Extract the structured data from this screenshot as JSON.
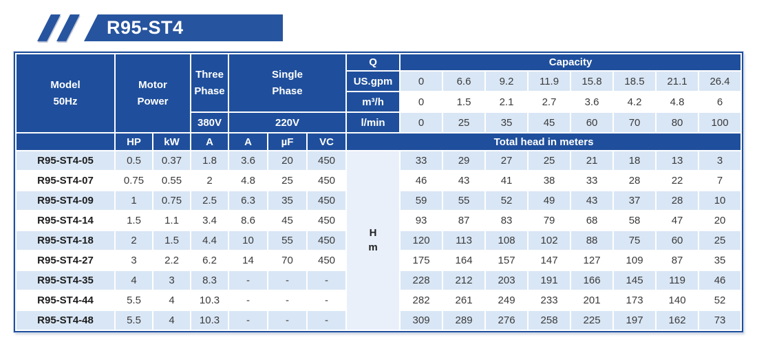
{
  "banner": {
    "title": "R95-ST4"
  },
  "colors": {
    "header_blue": "#1f4f9c",
    "banner_blue": "#27549f",
    "light_row": "#d9e6f5",
    "h_cell": "#e9f0fa"
  },
  "table": {
    "header": {
      "model_line1": "Model",
      "model_line2": "50Hz",
      "motor_line1": "Motor",
      "motor_line2": "Power",
      "three_line1": "Three",
      "three_line2": "Phase",
      "three_voltage": "380V",
      "single_line1": "Single",
      "single_line2": "Phase",
      "single_voltage": "220V",
      "q": "Q",
      "capacity": "Capacity",
      "unit_rows": [
        {
          "label": "US.gpm",
          "values": [
            "0",
            "6.6",
            "9.2",
            "11.9",
            "15.8",
            "18.5",
            "21.1",
            "26.4"
          ]
        },
        {
          "label": "m³/h",
          "values": [
            "0",
            "1.5",
            "2.1",
            "2.7",
            "3.6",
            "4.2",
            "4.8",
            "6"
          ]
        },
        {
          "label": "l/min",
          "values": [
            "0",
            "25",
            "35",
            "45",
            "60",
            "70",
            "80",
            "100"
          ]
        }
      ],
      "sub_headers": [
        "HP",
        "kW",
        "A",
        "A",
        "µF",
        "VC"
      ],
      "total_head": "Total head in meters",
      "h_line1": "H",
      "h_line2": "m"
    },
    "rows": [
      {
        "model": "R95-ST4-05",
        "hp": "0.5",
        "kw": "0.37",
        "a380": "1.8",
        "a220": "3.6",
        "uf": "20",
        "vc": "450",
        "head": [
          "33",
          "29",
          "27",
          "25",
          "21",
          "18",
          "13",
          "3"
        ]
      },
      {
        "model": "R95-ST4-07",
        "hp": "0.75",
        "kw": "0.55",
        "a380": "2",
        "a220": "4.8",
        "uf": "25",
        "vc": "450",
        "head": [
          "46",
          "43",
          "41",
          "38",
          "33",
          "28",
          "22",
          "7"
        ]
      },
      {
        "model": "R95-ST4-09",
        "hp": "1",
        "kw": "0.75",
        "a380": "2.5",
        "a220": "6.3",
        "uf": "35",
        "vc": "450",
        "head": [
          "59",
          "55",
          "52",
          "49",
          "43",
          "37",
          "28",
          "10"
        ]
      },
      {
        "model": "R95-ST4-14",
        "hp": "1.5",
        "kw": "1.1",
        "a380": "3.4",
        "a220": "8.6",
        "uf": "45",
        "vc": "450",
        "head": [
          "93",
          "87",
          "83",
          "79",
          "68",
          "58",
          "47",
          "20"
        ]
      },
      {
        "model": "R95-ST4-18",
        "hp": "2",
        "kw": "1.5",
        "a380": "4.4",
        "a220": "10",
        "uf": "55",
        "vc": "450",
        "head": [
          "120",
          "113",
          "108",
          "102",
          "88",
          "75",
          "60",
          "25"
        ]
      },
      {
        "model": "R95-ST4-27",
        "hp": "3",
        "kw": "2.2",
        "a380": "6.2",
        "a220": "14",
        "uf": "70",
        "vc": "450",
        "head": [
          "175",
          "164",
          "157",
          "147",
          "127",
          "109",
          "87",
          "35"
        ]
      },
      {
        "model": "R95-ST4-35",
        "hp": "4",
        "kw": "3",
        "a380": "8.3",
        "a220": "-",
        "uf": "-",
        "vc": "-",
        "head": [
          "228",
          "212",
          "203",
          "191",
          "166",
          "145",
          "119",
          "46"
        ]
      },
      {
        "model": "R95-ST4-44",
        "hp": "5.5",
        "kw": "4",
        "a380": "10.3",
        "a220": "-",
        "uf": "-",
        "vc": "-",
        "head": [
          "282",
          "261",
          "249",
          "233",
          "201",
          "173",
          "140",
          "52"
        ]
      },
      {
        "model": "R95-ST4-48",
        "hp": "5.5",
        "kw": "4",
        "a380": "10.3",
        "a220": "-",
        "uf": "-",
        "vc": "-",
        "head": [
          "309",
          "289",
          "276",
          "258",
          "225",
          "197",
          "162",
          "73"
        ]
      }
    ]
  }
}
